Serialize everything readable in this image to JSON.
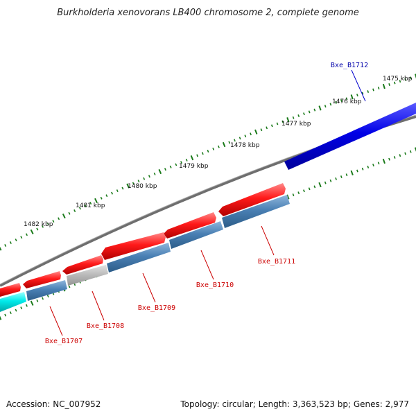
{
  "title": "Burkholderia xenovorans LB400 chromosome 2, complete genome",
  "footer": {
    "accession": "Accession: NC_007952",
    "summary": "Topology: circular; Length: 3,363,523 bp; Genes: 2,977"
  },
  "colors": {
    "backbone": "#6e6e6e",
    "gene_forward": "#e00000",
    "gene_forward_selected": "#0000cc",
    "gene_reverse": "#4682b4",
    "gene_pseudo": "#b8b8b8",
    "gene_other": "#00dede",
    "tick": "#1a7a1a",
    "label_forward": "#cc0000",
    "label_selected": "#0000aa"
  },
  "scale_labels": [
    "1475 kbp",
    "1476 kbp",
    "1477 kbp",
    "1478 kbp",
    "1479 kbp",
    "1480 kbp",
    "1481 kbp",
    "1482 kbp"
  ],
  "gene_labels": [
    {
      "name": "Bxe_B1712",
      "color_key": "label_selected"
    },
    {
      "name": "Bxe_B1711",
      "color_key": "label_forward"
    },
    {
      "name": "Bxe_B1710",
      "color_key": "label_forward"
    },
    {
      "name": "Bxe_B1709",
      "color_key": "label_forward"
    },
    {
      "name": "Bxe_B1708",
      "color_key": "label_forward"
    },
    {
      "name": "Bxe_B1707",
      "color_key": "label_forward"
    }
  ]
}
